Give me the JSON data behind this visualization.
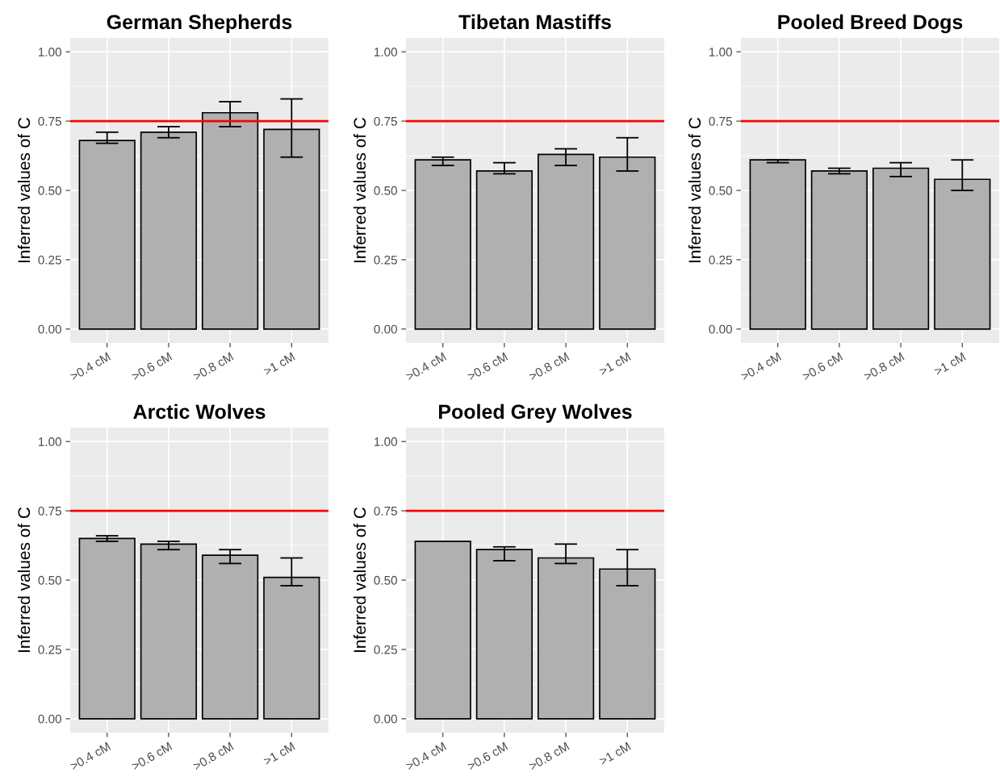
{
  "chart_data": [
    {
      "type": "bar",
      "title": "German Shepherds",
      "ylabel": "Inferred values of C",
      "categories": [
        ">0.4 cM",
        ">0.6 cM",
        ">0.8 cM",
        ">1 cM"
      ],
      "values": [
        0.68,
        0.71,
        0.78,
        0.72
      ],
      "errors": [
        [
          0.67,
          0.71
        ],
        [
          0.69,
          0.73
        ],
        [
          0.73,
          0.82
        ],
        [
          0.62,
          0.83
        ]
      ],
      "color": "#b0b0b0",
      "ylim": [
        -0.05,
        1.05
      ],
      "yticks": [
        {
          "value": 0,
          "label": "0.00"
        },
        {
          "value": 0.25,
          "label": "0.25"
        },
        {
          "value": 0.5,
          "label": "0.50"
        },
        {
          "value": 0.75,
          "label": "0.75"
        },
        {
          "value": 1,
          "label": "1.00"
        }
      ],
      "ref_lines": [
        {
          "axis": "y",
          "value": 0.75,
          "color": "#ff0000"
        }
      ],
      "grid": true
    },
    {
      "type": "bar",
      "title": "Tibetan Mastiffs",
      "ylabel": "Inferred values of C",
      "categories": [
        ">0.4 cM",
        ">0.6 cM",
        ">0.8 cM",
        ">1 cM"
      ],
      "values": [
        0.61,
        0.57,
        0.63,
        0.62
      ],
      "errors": [
        [
          0.59,
          0.62
        ],
        [
          0.56,
          0.6
        ],
        [
          0.59,
          0.65
        ],
        [
          0.57,
          0.69
        ]
      ],
      "color": "#b0b0b0",
      "ylim": [
        -0.05,
        1.05
      ],
      "yticks": [
        {
          "value": 0,
          "label": "0.00"
        },
        {
          "value": 0.25,
          "label": "0.25"
        },
        {
          "value": 0.5,
          "label": "0.50"
        },
        {
          "value": 0.75,
          "label": "0.75"
        },
        {
          "value": 1,
          "label": "1.00"
        }
      ],
      "ref_lines": [
        {
          "axis": "y",
          "value": 0.75,
          "color": "#ff0000"
        }
      ],
      "grid": true
    },
    {
      "type": "bar",
      "title": "Pooled Breed Dogs",
      "ylabel": "Inferred values of C",
      "categories": [
        ">0.4 cM",
        ">0.6 cM",
        ">0.8 cM",
        ">1 cM"
      ],
      "values": [
        0.61,
        0.57,
        0.58,
        0.54
      ],
      "errors": [
        [
          0.6,
          0.61
        ],
        [
          0.56,
          0.58
        ],
        [
          0.55,
          0.6
        ],
        [
          0.5,
          0.61
        ]
      ],
      "color": "#b0b0b0",
      "ylim": [
        -0.05,
        1.05
      ],
      "yticks": [
        {
          "value": 0,
          "label": "0.00"
        },
        {
          "value": 0.25,
          "label": "0.25"
        },
        {
          "value": 0.5,
          "label": "0.50"
        },
        {
          "value": 0.75,
          "label": "0.75"
        },
        {
          "value": 1,
          "label": "1.00"
        }
      ],
      "ref_lines": [
        {
          "axis": "y",
          "value": 0.75,
          "color": "#ff0000"
        }
      ],
      "grid": true
    },
    {
      "type": "bar",
      "title": "Arctic Wolves",
      "ylabel": "Inferred values of C",
      "categories": [
        ">0.4 cM",
        ">0.6 cM",
        ">0.8 cM",
        ">1 cM"
      ],
      "values": [
        0.65,
        0.63,
        0.59,
        0.51
      ],
      "errors": [
        [
          0.64,
          0.66
        ],
        [
          0.61,
          0.64
        ],
        [
          0.56,
          0.61
        ],
        [
          0.48,
          0.58
        ]
      ],
      "color": "#b0b0b0",
      "ylim": [
        -0.05,
        1.05
      ],
      "yticks": [
        {
          "value": 0,
          "label": "0.00"
        },
        {
          "value": 0.25,
          "label": "0.25"
        },
        {
          "value": 0.5,
          "label": "0.50"
        },
        {
          "value": 0.75,
          "label": "0.75"
        },
        {
          "value": 1,
          "label": "1.00"
        }
      ],
      "ref_lines": [
        {
          "axis": "y",
          "value": 0.75,
          "color": "#ff0000"
        }
      ],
      "grid": true
    },
    {
      "type": "bar",
      "title": "Pooled Grey Wolves",
      "ylabel": "Inferred values of C",
      "categories": [
        ">0.4 cM",
        ">0.6 cM",
        ">0.8 cM",
        ">1 cM"
      ],
      "values": [
        0.64,
        0.61,
        0.58,
        0.54
      ],
      "errors": [
        null,
        [
          0.57,
          0.62
        ],
        [
          0.56,
          0.63
        ],
        [
          0.48,
          0.61
        ]
      ],
      "color": "#b0b0b0",
      "ylim": [
        -0.05,
        1.05
      ],
      "yticks": [
        {
          "value": 0,
          "label": "0.00"
        },
        {
          "value": 0.25,
          "label": "0.25"
        },
        {
          "value": 0.5,
          "label": "0.50"
        },
        {
          "value": 0.75,
          "label": "0.75"
        },
        {
          "value": 1,
          "label": "1.00"
        }
      ],
      "ref_lines": [
        {
          "axis": "y",
          "value": 0.75,
          "color": "#ff0000"
        }
      ],
      "grid": true
    }
  ]
}
